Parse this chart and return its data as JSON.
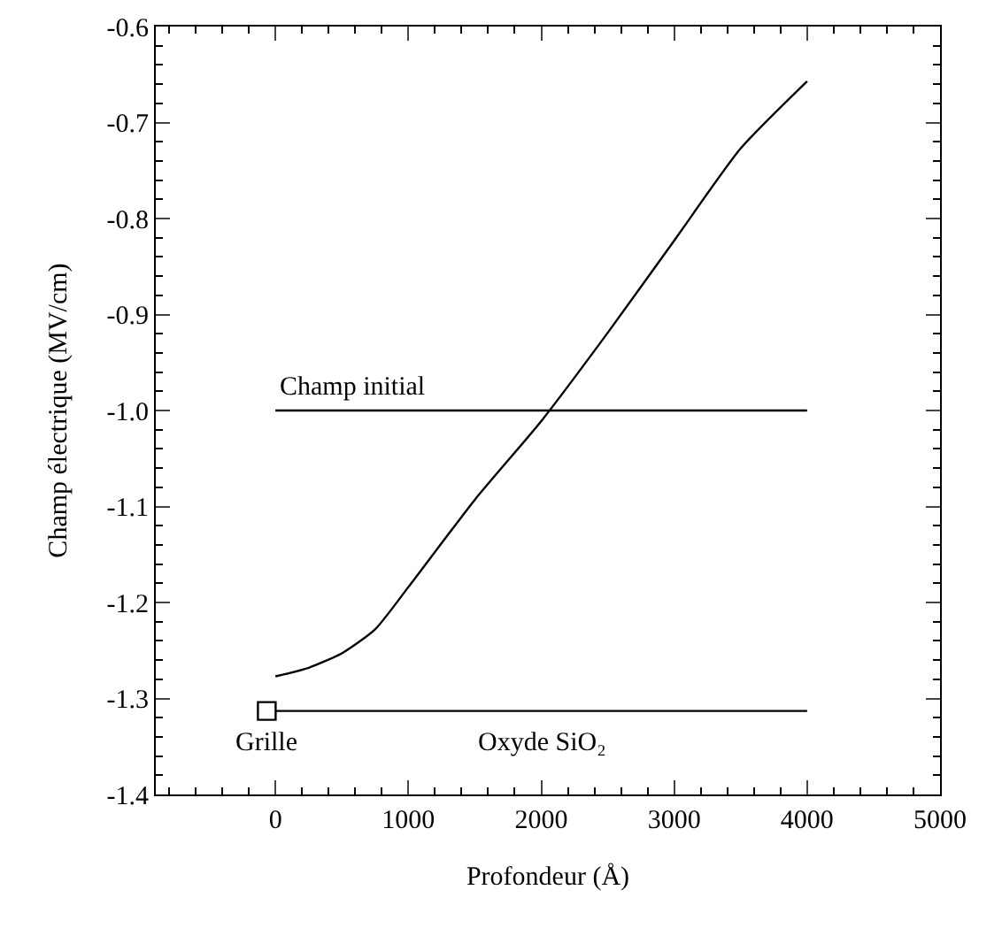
{
  "chart_data": {
    "type": "line",
    "xlabel": "Profondeur (Å)",
    "ylabel": "Champ électrique (MV/cm)",
    "xlim": [
      -900,
      5000
    ],
    "xticks": [
      0,
      1000,
      2000,
      3000,
      4000,
      5000
    ],
    "ylim": [
      -1.4,
      -0.6
    ],
    "yticks": [
      {
        "value": -1.4,
        "label": "-1.4"
      },
      {
        "value": -1.3,
        "label": "-1.3"
      },
      {
        "value": -1.2,
        "label": "-1.2"
      },
      {
        "value": -1.1,
        "label": "-1.1"
      },
      {
        "value": -1.0,
        "label": "-1.0"
      },
      {
        "value": -0.9,
        "label": "-0.9"
      },
      {
        "value": -0.8,
        "label": "-0.8"
      },
      {
        "value": -0.7,
        "label": "-0.7"
      },
      {
        "value": -0.6,
        "label": "-0.6"
      }
    ],
    "grid": false,
    "legend": false,
    "marker": "none",
    "line_style": "solid",
    "series": [
      {
        "color": "#000000",
        "x": [
          0,
          250,
          500,
          750,
          1000,
          1500,
          2000,
          2500,
          3000,
          3500,
          4000
        ],
        "values": [
          -1.277,
          -1.268,
          -1.253,
          -1.228,
          -1.184,
          -1.093,
          -1.011,
          -0.919,
          -0.823,
          -0.727,
          -0.657
        ]
      },
      {
        "name": "Champ initial",
        "color": "#000000",
        "x": [
          0,
          4000
        ],
        "values": [
          -1.0,
          -1.0
        ]
      },
      {
        "name": "Oxyde SiO₂",
        "color": "#000000",
        "x": [
          0,
          4000
        ],
        "values": [
          -1.313,
          -1.313
        ]
      },
      {
        "name": "Grille",
        "type": "scatter",
        "marker": "square",
        "color": "#000000",
        "x": [
          -65
        ],
        "values": [
          -1.313
        ]
      }
    ]
  }
}
